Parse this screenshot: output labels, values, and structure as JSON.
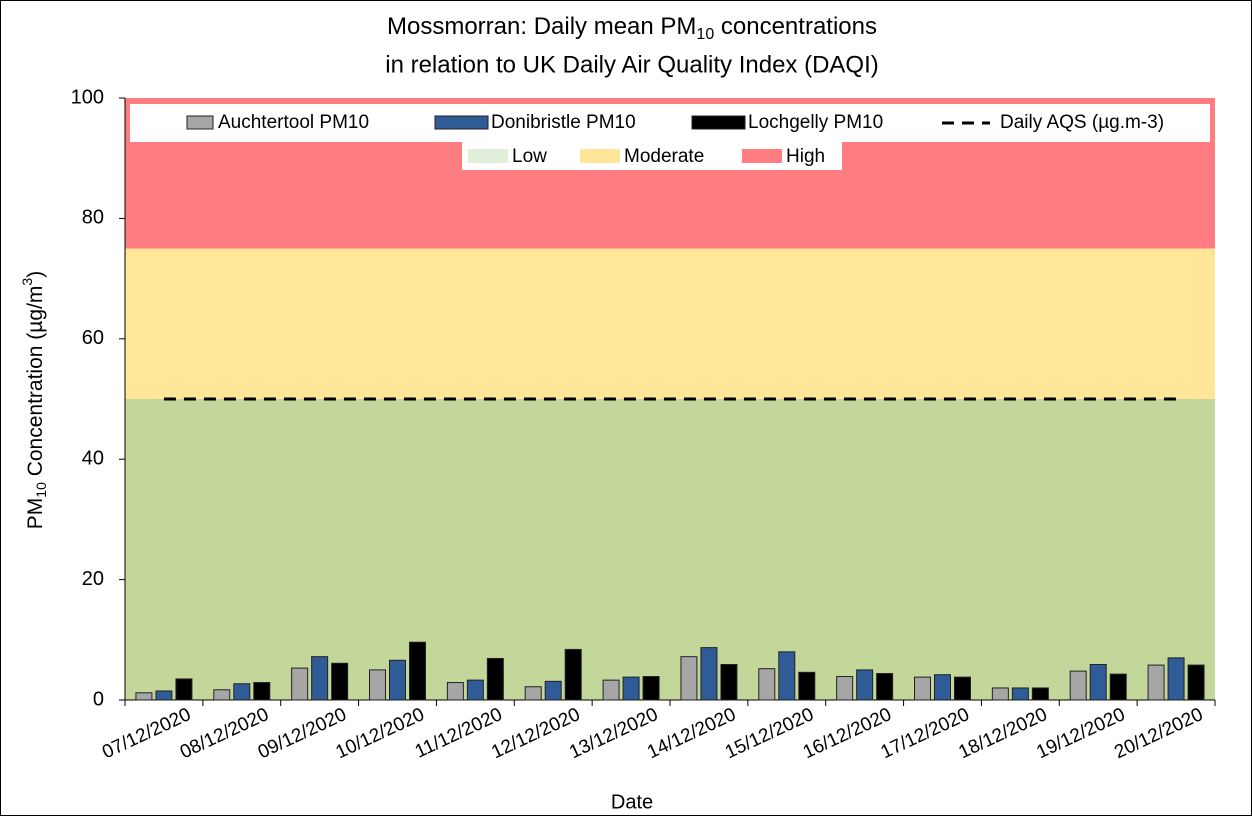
{
  "chart_data": {
    "type": "bar",
    "title": {
      "line1": [
        "Mossmorran: Daily mean PM",
        "10",
        " concentrations"
      ],
      "line2": "in relation to UK Daily Air Quality Index (DAQI)"
    },
    "x_label": "Date",
    "y_label": [
      "PM",
      "10",
      " Concentration (µg/m",
      "3",
      ")"
    ],
    "categories": [
      "07/12/2020",
      "08/12/2020",
      "09/12/2020",
      "10/12/2020",
      "11/12/2020",
      "12/12/2020",
      "13/12/2020",
      "14/12/2020",
      "15/12/2020",
      "16/12/2020",
      "17/12/2020",
      "18/12/2020",
      "19/12/2020",
      "20/12/2020"
    ],
    "series": [
      {
        "name": "Auchtertool PM10",
        "color": "#a6a6a6",
        "values": [
          1.2,
          1.7,
          5.3,
          5.0,
          2.9,
          2.2,
          3.3,
          7.2,
          5.2,
          3.9,
          3.8,
          2.0,
          4.8,
          5.8
        ]
      },
      {
        "name": "Donibristle PM10",
        "color": "#2f5b97",
        "values": [
          1.5,
          2.7,
          7.2,
          6.6,
          3.3,
          3.1,
          3.8,
          8.7,
          8.0,
          5.0,
          4.2,
          2.0,
          5.9,
          7.0
        ]
      },
      {
        "name": "Lochgelly PM10",
        "color": "#000000",
        "values": [
          3.5,
          2.9,
          6.1,
          9.6,
          6.9,
          8.4,
          3.9,
          5.9,
          4.6,
          4.4,
          3.8,
          2.0,
          4.3,
          5.8
        ]
      }
    ],
    "reference_line": {
      "name": "Daily AQS (µg.m-3)",
      "value": 50,
      "color": "#000000"
    },
    "bands": [
      {
        "name": "Low",
        "from": 0,
        "to": 50,
        "color": "#c4d79b",
        "legend_color": "#e2efda"
      },
      {
        "name": "Moderate",
        "from": 50,
        "to": 75,
        "color": "#ffe699",
        "legend_color": "#ffe699"
      },
      {
        "name": "High",
        "from": 75,
        "to": 100,
        "color": "#ff7c80",
        "legend_color": "#ff7c80"
      }
    ],
    "ylim": [
      0,
      100
    ],
    "yticks": [
      0,
      20,
      40,
      60,
      80,
      100
    ],
    "legend": "top"
  }
}
